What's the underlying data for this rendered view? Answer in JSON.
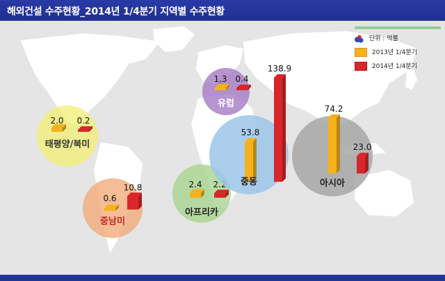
{
  "title": "해외건설 수주현황_2014년 1/4분기 지역별 수주현황",
  "legend": {
    "unit_label": "단위 : 억불",
    "items": [
      "2013년 1/4분기",
      "2014년 1/4분기"
    ]
  },
  "colors": {
    "header": "#23339a",
    "series_2013": "#f5b21c",
    "series_2014": "#d9262b",
    "legend_bar": "#8fcf9a"
  },
  "chart_data": {
    "type": "bar",
    "title": "해외건설 수주현황_2014년 1/4분기 지역별 수주현황",
    "unit": "단위 : 억불",
    "categories": [
      "태평양/북미",
      "중남미",
      "유럽",
      "아프리카",
      "중동",
      "아시아"
    ],
    "series": [
      {
        "name": "2013년 1/4분기",
        "values": [
          2.0,
          0.6,
          1.3,
          2.4,
          53.8,
          74.2
        ]
      },
      {
        "name": "2014년 1/4분기",
        "values": [
          0.2,
          10.8,
          0.4,
          2.2,
          138.9,
          23.0
        ]
      }
    ],
    "value_labels": [
      [
        "2.0",
        "0.6",
        "1,3",
        "2.4",
        "53.8",
        "74.2"
      ],
      [
        "0.2",
        "10.8",
        "0.4",
        "2.2",
        "138.9",
        "23.0"
      ]
    ],
    "legend_position": "top-right",
    "grid": false
  }
}
